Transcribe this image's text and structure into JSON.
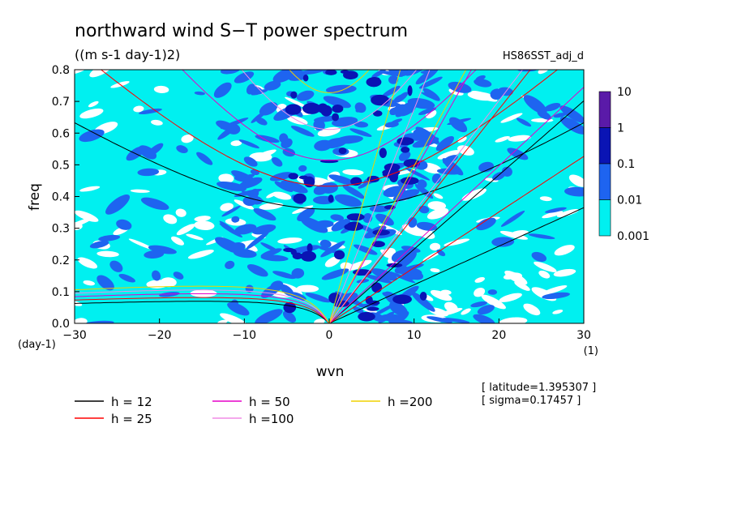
{
  "chart_data": {
    "type": "heatmap",
    "title": "northward wind S−T power spectrum",
    "subtitle": "((m s-1 day-1)2)",
    "run_label": "HS86SST_adj_d",
    "xlabel": "wvn",
    "ylabel": "freq",
    "x_unit": "(1)",
    "y_unit": "(day-1)",
    "xlim": [
      -30,
      30
    ],
    "ylim": [
      0,
      0.8
    ],
    "x_ticks": [
      "−30",
      "−20",
      "−10",
      "0",
      "10",
      "20",
      "30"
    ],
    "x_tick_values": [
      -30,
      -20,
      -10,
      0,
      10,
      20,
      30
    ],
    "y_ticks": [
      "0.0",
      "0.1",
      "0.2",
      "0.3",
      "0.4",
      "0.5",
      "0.6",
      "0.7",
      "0.8"
    ],
    "y_tick_values": [
      0,
      0.1,
      0.2,
      0.3,
      0.4,
      0.5,
      0.6,
      0.7,
      0.8
    ],
    "colorbar": {
      "levels": [
        "10",
        "1",
        "0.1",
        "0.01",
        "0.001"
      ],
      "colors": [
        "#5a1aa8",
        "#0a14b4",
        "#1e64f0",
        "#00f0f0"
      ]
    },
    "shading_colors": {
      "background": "#ffffff",
      "lowest": "#00f0f0",
      "low": "#1e64f0",
      "mid": "#0a14b4"
    },
    "dispersion_curves": [
      {
        "name": "h = 12",
        "equivalent_depth": 12,
        "color": "#000000"
      },
      {
        "name": "h = 25",
        "equivalent_depth": 25,
        "color": "#ff0000"
      },
      {
        "name": "h = 50",
        "equivalent_depth": 50,
        "color": "#e600c8"
      },
      {
        "name": "h =100",
        "equivalent_depth": 100,
        "color": "#f08ce6"
      },
      {
        "name": "h =200",
        "equivalent_depth": 200,
        "color": "#f0d200"
      }
    ],
    "annotations": [
      "[ latitude=1.395307 ]",
      "[ sigma=0.17457 ]"
    ]
  }
}
